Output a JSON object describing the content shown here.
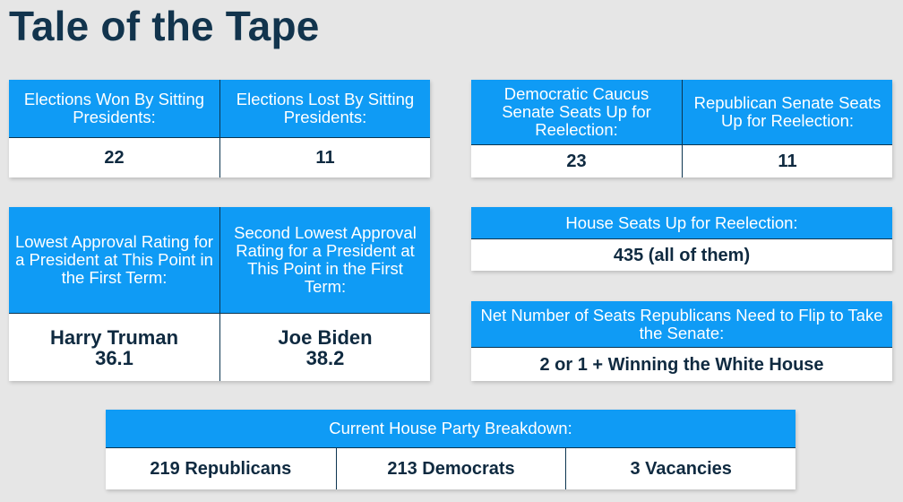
{
  "title": "Tale of the Tape",
  "elections": {
    "won_label": "Elections Won By Sitting Presidents:",
    "lost_label": "Elections Lost By Sitting Presidents:",
    "won_value": "22",
    "lost_value": "11"
  },
  "senate": {
    "dem_label": "Democratic Caucus Senate Seats Up for Reelection:",
    "rep_label": "Republican Senate Seats Up for Reelection:",
    "dem_value": "23",
    "rep_value": "11"
  },
  "approval": {
    "lowest_label": "Lowest Approval Rating for a President at This Point in the First Term:",
    "second_label": "Second Lowest Approval Rating for a President at This Point in the First Term:",
    "lowest_name": "Harry Truman",
    "lowest_value": "36.1",
    "second_name": "Joe Biden",
    "second_value": "38.2"
  },
  "house": {
    "label": "House Seats Up for Reelection:",
    "value": "435 (all of them)"
  },
  "flip": {
    "label": "Net Number of Seats Republicans Need to Flip to Take the Senate:",
    "value": "2 or 1 + Winning the White House"
  },
  "party": {
    "label": "Current House Party Breakdown:",
    "republicans": "219 Republicans",
    "democrats": "213 Democrats",
    "vacancies": "3 Vacancies"
  },
  "colors": {
    "header_bg": "#0f9bf5",
    "title_text": "#12344d",
    "value_text": "#0f2a40",
    "page_bg": "#e6e6e6"
  }
}
